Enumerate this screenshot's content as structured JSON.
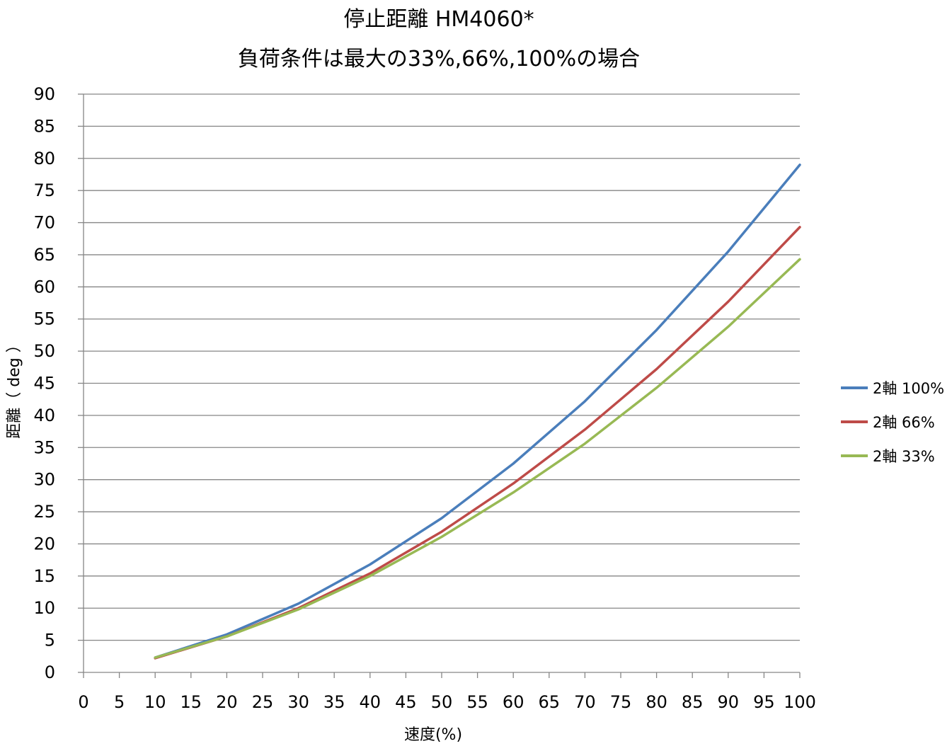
{
  "chart_data": {
    "type": "line",
    "title": "停止距離 HM4060*",
    "subtitle": "負荷条件は最大の33%,66%,100%の場合",
    "xlabel": "速度(%)",
    "ylabel": "距離（ deg ）",
    "xlim": [
      0,
      100
    ],
    "ylim": [
      0,
      90
    ],
    "x_ticks": [
      0,
      5,
      10,
      15,
      20,
      25,
      30,
      35,
      40,
      45,
      50,
      55,
      60,
      65,
      70,
      75,
      80,
      85,
      90,
      95,
      100
    ],
    "y_ticks": [
      0,
      5,
      10,
      15,
      20,
      25,
      30,
      35,
      40,
      45,
      50,
      55,
      60,
      65,
      70,
      75,
      80,
      85,
      90
    ],
    "grid": "horizontal",
    "legend_position": "right",
    "x": [
      10,
      20,
      30,
      40,
      50,
      60,
      70,
      80,
      90,
      100
    ],
    "series": [
      {
        "name": "2軸 100%",
        "color": "#4a7ebb",
        "values": [
          2.3,
          5.9,
          10.7,
          16.8,
          24.0,
          32.5,
          42.2,
          53.3,
          65.5,
          79.0
        ]
      },
      {
        "name": "2軸 66%",
        "color": "#be4b48",
        "values": [
          2.2,
          5.6,
          10.0,
          15.4,
          21.9,
          29.4,
          37.8,
          47.2,
          57.7,
          69.3
        ]
      },
      {
        "name": "2軸 33%",
        "color": "#98b954",
        "values": [
          2.3,
          5.6,
          9.8,
          15.0,
          21.1,
          28.0,
          35.6,
          44.3,
          53.8,
          64.3
        ]
      }
    ]
  }
}
